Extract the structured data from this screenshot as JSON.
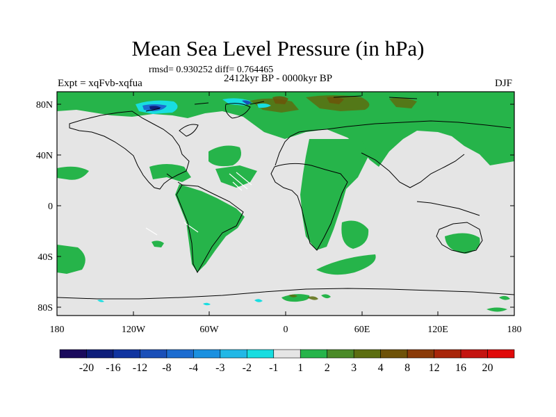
{
  "title": "Mean Sea Level Pressure (in hPa)",
  "stats": "rmsd= 0.930252 diff= 0.764465",
  "period": "2412kyr BP - 0000kyr BP",
  "experiment": "Expt = xqFvb-xqfua",
  "season": "DJF",
  "lat_labels": [
    "80N",
    "40N",
    "0",
    "40S",
    "80S"
  ],
  "lon_labels": [
    "180",
    "120W",
    "60W",
    "0",
    "60E",
    "120E",
    "180"
  ],
  "colorbar": {
    "labels": [
      "-20",
      "-16",
      "-12",
      "-8",
      "-4",
      "-3",
      "-2",
      "-1",
      "1",
      "2",
      "3",
      "4",
      "8",
      "12",
      "16",
      "20"
    ],
    "colors": [
      "#1a0a5c",
      "#0e1e7a",
      "#1034a0",
      "#1a4fb8",
      "#1c6cd0",
      "#1a90e0",
      "#22b8e6",
      "#18dde0",
      "#e5e5e5",
      "#26b44a",
      "#4a8a28",
      "#5c6e10",
      "#6e5208",
      "#8a3a08",
      "#a8260a",
      "#c41410",
      "#e00a0a"
    ]
  },
  "colors": {
    "background_anomaly": "#e5e5e5",
    "positive_small": "#26b44a",
    "positive_medium": "#5c6e10",
    "negative_small": "#18dde0",
    "negative_large": "#0e1e7a"
  }
}
